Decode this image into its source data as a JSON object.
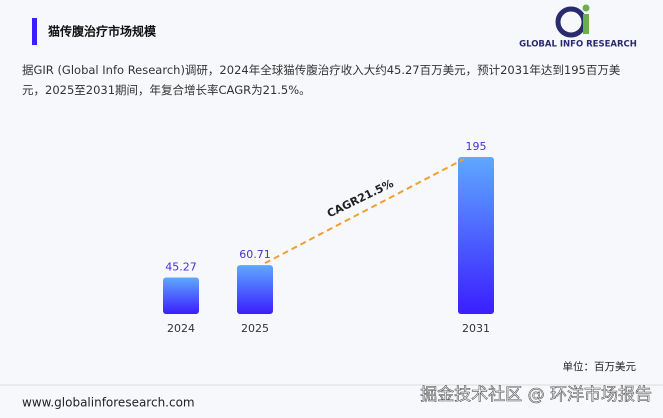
{
  "chart_data": {
    "type": "bar",
    "title": "猫传腹治疗市场规模",
    "description": "据GIR (Global Info Research)调研，2024年全球猫传腹治疗收入大约45.27百万美元，预计2031年达到195百万美元，2025至2031期间，年复合增长率CAGR为21.5%。",
    "categories": [
      "2024",
      "2025",
      "2031"
    ],
    "values": [
      45.27,
      60.71,
      195
    ],
    "color": "#3a1eff",
    "annotation": "CAGR21.5%",
    "unit": "单位：百万美元",
    "source": "www.globalinforesearch.com",
    "logo": "GLOBAL INFO RESEARCH",
    "watermark": "掘金技术社区 @ 环洋市场报告"
  }
}
